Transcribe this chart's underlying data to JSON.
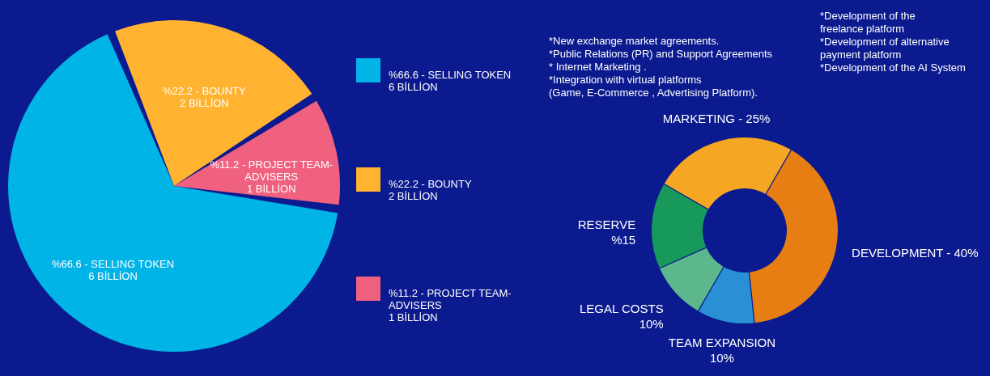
{
  "chart_data": [
    {
      "type": "pie",
      "categories": [
        "%66.6 - SELLING TOKEN\n6 BİLLİON",
        "%22.2 - BOUNTY\n2 BİLLİON",
        "%11.2 - PROJECT TEAM-\nADVISERS\n1 BİLLİON"
      ],
      "values": [
        66.6,
        22.2,
        11.2
      ],
      "colors": [
        "#00b4e8",
        "#ffb330",
        "#f0607f"
      ],
      "value_labels": [
        "%66.6 - SELLING TOKEN\n6 BİLLİON",
        "%22.2 - BOUNTY\n2 BİLLİON",
        "%11.2 - PROJECT TEAM-\nADVISERS\n1 BİLLİON"
      ],
      "legend": "right"
    },
    {
      "type": "donut",
      "categories": [
        "MARKETING - 25%",
        "DEVELOPMENT - 40%",
        "TEAM EXPANSION\n10%",
        "LEGAL COSTS\n10%",
        "RESERVE\n%15"
      ],
      "values": [
        25,
        40,
        10,
        10,
        15
      ],
      "colors": [
        "#f5a623",
        "#e67e14",
        "#2a8fd4",
        "#5cb88c",
        "#16995a"
      ],
      "annotations": [
        "*New exchange market agreements.\n*Public Relations (PR) and Support Agreements\n* Internet Marketing .\n*Integration with virtual platforms\n  (Game, E-Commerce , Advertising Platform).",
        "*Development of the\n  freelance platform\n*Development of alternative\n  payment platform\n*Development of the AI System"
      ]
    }
  ]
}
